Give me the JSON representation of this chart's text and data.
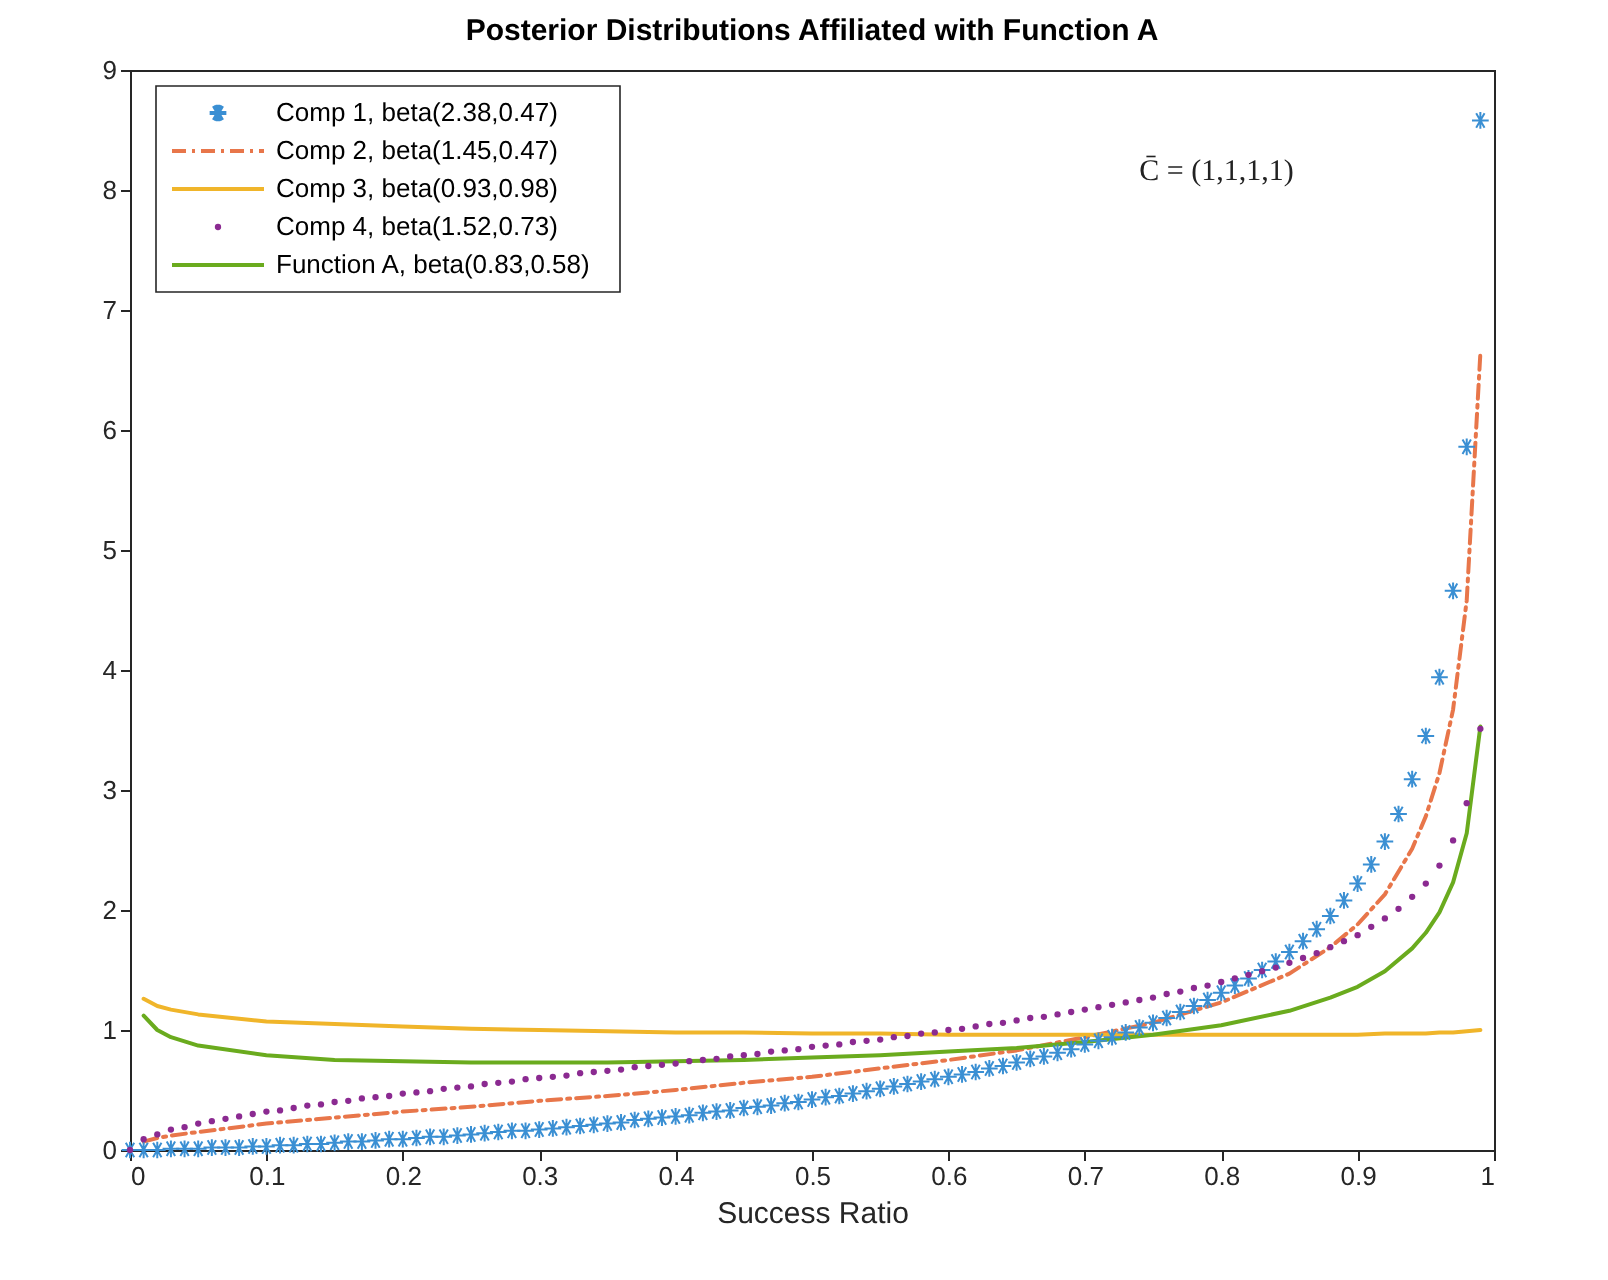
{
  "chart_data": {
    "type": "line",
    "title": "Posterior Distributions Affiliated with Function A",
    "xlabel": "Success Ratio",
    "annotations": [
      "C̄ = (1,1,1,1)"
    ],
    "xlim": [
      0,
      1
    ],
    "xticks": [
      0,
      0.1,
      0.2,
      0.3,
      0.4,
      0.5,
      0.6,
      0.7,
      0.8,
      0.9,
      1
    ],
    "ylim": [
      0,
      9
    ],
    "yticks": [
      0,
      1,
      2,
      3,
      4,
      5,
      6,
      7,
      8,
      9
    ],
    "grid": false,
    "legend": "top left",
    "series": [
      {
        "name": "Comp 1, beta(2.38,0.47)",
        "type": "scatter",
        "marker": "cross",
        "color": "#3a8fd3",
        "x": [
          0,
          0.01,
          0.02,
          0.03,
          0.04,
          0.05,
          0.06,
          0.07,
          0.08,
          0.09,
          0.1,
          0.11,
          0.12,
          0.13,
          0.14,
          0.15,
          0.16,
          0.17,
          0.18,
          0.19,
          0.2,
          0.21,
          0.22,
          0.23,
          0.24,
          0.25,
          0.26,
          0.27,
          0.28,
          0.29,
          0.3,
          0.31,
          0.32,
          0.33,
          0.34,
          0.35,
          0.36,
          0.37,
          0.38,
          0.39,
          0.4,
          0.41,
          0.42,
          0.43,
          0.44,
          0.45,
          0.46,
          0.47,
          0.48,
          0.49,
          0.5,
          0.51,
          0.52,
          0.53,
          0.54,
          0.55,
          0.56,
          0.57,
          0.58,
          0.59,
          0.6,
          0.61,
          0.62,
          0.63,
          0.64,
          0.65,
          0.66,
          0.67,
          0.68,
          0.69,
          0.7,
          0.71,
          0.72,
          0.73,
          0.74,
          0.75,
          0.76,
          0.77,
          0.78,
          0.79,
          0.8,
          0.81,
          0.82,
          0.83,
          0.84,
          0.85,
          0.86,
          0.87,
          0.88,
          0.89,
          0.9,
          0.91,
          0.92,
          0.93,
          0.94,
          0.95,
          0.96,
          0.97,
          0.98,
          0.99
        ],
        "values": [
          0,
          0,
          0,
          0.01,
          0.01,
          0.01,
          0.02,
          0.02,
          0.02,
          0.03,
          0.03,
          0.04,
          0.04,
          0.05,
          0.05,
          0.06,
          0.07,
          0.07,
          0.08,
          0.09,
          0.09,
          0.1,
          0.11,
          0.11,
          0.12,
          0.13,
          0.14,
          0.15,
          0.16,
          0.16,
          0.17,
          0.18,
          0.19,
          0.2,
          0.21,
          0.22,
          0.23,
          0.25,
          0.26,
          0.27,
          0.28,
          0.29,
          0.31,
          0.32,
          0.33,
          0.35,
          0.36,
          0.37,
          0.39,
          0.4,
          0.42,
          0.44,
          0.45,
          0.47,
          0.49,
          0.51,
          0.53,
          0.55,
          0.57,
          0.59,
          0.61,
          0.63,
          0.65,
          0.68,
          0.7,
          0.73,
          0.76,
          0.78,
          0.81,
          0.84,
          0.88,
          0.91,
          0.94,
          0.98,
          1.02,
          1.06,
          1.1,
          1.15,
          1.2,
          1.25,
          1.31,
          1.37,
          1.43,
          1.5,
          1.57,
          1.65,
          1.74,
          1.84,
          1.95,
          2.08,
          2.22,
          2.38,
          2.57,
          2.8,
          3.09,
          3.45,
          3.94,
          4.66,
          5.86,
          8.58
        ]
      },
      {
        "name": "Comp 2, beta(1.45,0.47)",
        "line_style": "dashed",
        "color": "#e8764a",
        "x": [
          0.01,
          0.02,
          0.03,
          0.05,
          0.1,
          0.15,
          0.2,
          0.25,
          0.3,
          0.35,
          0.4,
          0.45,
          0.5,
          0.55,
          0.6,
          0.65,
          0.7,
          0.75,
          0.8,
          0.85,
          0.88,
          0.9,
          0.92,
          0.94,
          0.95,
          0.96,
          0.97,
          0.98,
          0.99
        ],
        "values": [
          0.07,
          0.1,
          0.12,
          0.15,
          0.22,
          0.27,
          0.32,
          0.36,
          0.41,
          0.45,
          0.5,
          0.56,
          0.61,
          0.68,
          0.75,
          0.83,
          0.94,
          1.06,
          1.23,
          1.47,
          1.69,
          1.88,
          2.13,
          2.51,
          2.78,
          3.14,
          3.67,
          4.58,
          6.64
        ]
      },
      {
        "name": "Comp 3, beta(0.93,0.98)",
        "line_style": "solid",
        "color": "#f0b52a",
        "x": [
          0.01,
          0.02,
          0.03,
          0.05,
          0.1,
          0.15,
          0.2,
          0.25,
          0.3,
          0.35,
          0.4,
          0.45,
          0.5,
          0.55,
          0.6,
          0.65,
          0.7,
          0.75,
          0.8,
          0.85,
          0.88,
          0.9,
          0.92,
          0.94,
          0.95,
          0.96,
          0.97,
          0.98,
          0.99
        ],
        "values": [
          1.26,
          1.2,
          1.17,
          1.13,
          1.07,
          1.05,
          1.03,
          1.01,
          1.0,
          0.99,
          0.98,
          0.98,
          0.97,
          0.97,
          0.96,
          0.96,
          0.96,
          0.96,
          0.96,
          0.96,
          0.96,
          0.96,
          0.97,
          0.97,
          0.97,
          0.98,
          0.98,
          0.99,
          1.0
        ]
      },
      {
        "name": "Comp 4, beta(1.52,0.73)",
        "type": "scatter",
        "marker": "circle",
        "color": "#8b2a91",
        "x": [
          0,
          0.01,
          0.02,
          0.03,
          0.04,
          0.05,
          0.06,
          0.07,
          0.08,
          0.09,
          0.1,
          0.11,
          0.12,
          0.13,
          0.14,
          0.15,
          0.16,
          0.17,
          0.18,
          0.19,
          0.2,
          0.21,
          0.22,
          0.23,
          0.24,
          0.25,
          0.26,
          0.27,
          0.28,
          0.29,
          0.3,
          0.31,
          0.32,
          0.33,
          0.34,
          0.35,
          0.36,
          0.37,
          0.38,
          0.39,
          0.4,
          0.41,
          0.42,
          0.43,
          0.44,
          0.45,
          0.46,
          0.47,
          0.48,
          0.49,
          0.5,
          0.51,
          0.52,
          0.53,
          0.54,
          0.55,
          0.56,
          0.57,
          0.58,
          0.59,
          0.6,
          0.61,
          0.62,
          0.63,
          0.64,
          0.65,
          0.66,
          0.67,
          0.68,
          0.69,
          0.7,
          0.71,
          0.72,
          0.73,
          0.74,
          0.75,
          0.76,
          0.77,
          0.78,
          0.79,
          0.8,
          0.81,
          0.82,
          0.83,
          0.84,
          0.85,
          0.86,
          0.87,
          0.88,
          0.89,
          0.9,
          0.91,
          0.92,
          0.93,
          0.94,
          0.95,
          0.96,
          0.97,
          0.98,
          0.99
        ],
        "values": [
          0,
          0.09,
          0.13,
          0.17,
          0.19,
          0.22,
          0.24,
          0.26,
          0.28,
          0.3,
          0.32,
          0.33,
          0.35,
          0.37,
          0.38,
          0.4,
          0.41,
          0.43,
          0.44,
          0.45,
          0.47,
          0.48,
          0.49,
          0.51,
          0.52,
          0.53,
          0.55,
          0.56,
          0.57,
          0.59,
          0.6,
          0.61,
          0.62,
          0.64,
          0.65,
          0.66,
          0.67,
          0.69,
          0.7,
          0.71,
          0.72,
          0.74,
          0.75,
          0.76,
          0.78,
          0.79,
          0.8,
          0.82,
          0.83,
          0.84,
          0.86,
          0.87,
          0.88,
          0.9,
          0.91,
          0.92,
          0.94,
          0.95,
          0.97,
          0.98,
          1.0,
          1.01,
          1.03,
          1.05,
          1.06,
          1.08,
          1.1,
          1.11,
          1.13,
          1.15,
          1.17,
          1.19,
          1.21,
          1.23,
          1.25,
          1.27,
          1.3,
          1.32,
          1.35,
          1.37,
          1.4,
          1.43,
          1.46,
          1.49,
          1.52,
          1.56,
          1.6,
          1.64,
          1.69,
          1.74,
          1.79,
          1.86,
          1.93,
          2.01,
          2.11,
          2.22,
          2.37,
          2.58,
          2.89,
          3.51
        ]
      },
      {
        "name": "Function A, beta(0.83,0.58)",
        "line_style": "solid",
        "color": "#6aab1e",
        "x": [
          0.01,
          0.02,
          0.03,
          0.05,
          0.1,
          0.15,
          0.2,
          0.25,
          0.3,
          0.35,
          0.4,
          0.45,
          0.5,
          0.55,
          0.6,
          0.65,
          0.7,
          0.75,
          0.8,
          0.85,
          0.88,
          0.9,
          0.92,
          0.94,
          0.95,
          0.96,
          0.97,
          0.98,
          0.99
        ],
        "values": [
          1.12,
          1.0,
          0.94,
          0.87,
          0.79,
          0.75,
          0.74,
          0.73,
          0.73,
          0.73,
          0.74,
          0.75,
          0.77,
          0.79,
          0.82,
          0.85,
          0.9,
          0.96,
          1.04,
          1.16,
          1.27,
          1.36,
          1.49,
          1.68,
          1.81,
          1.98,
          2.23,
          2.64,
          3.53
        ]
      }
    ]
  }
}
